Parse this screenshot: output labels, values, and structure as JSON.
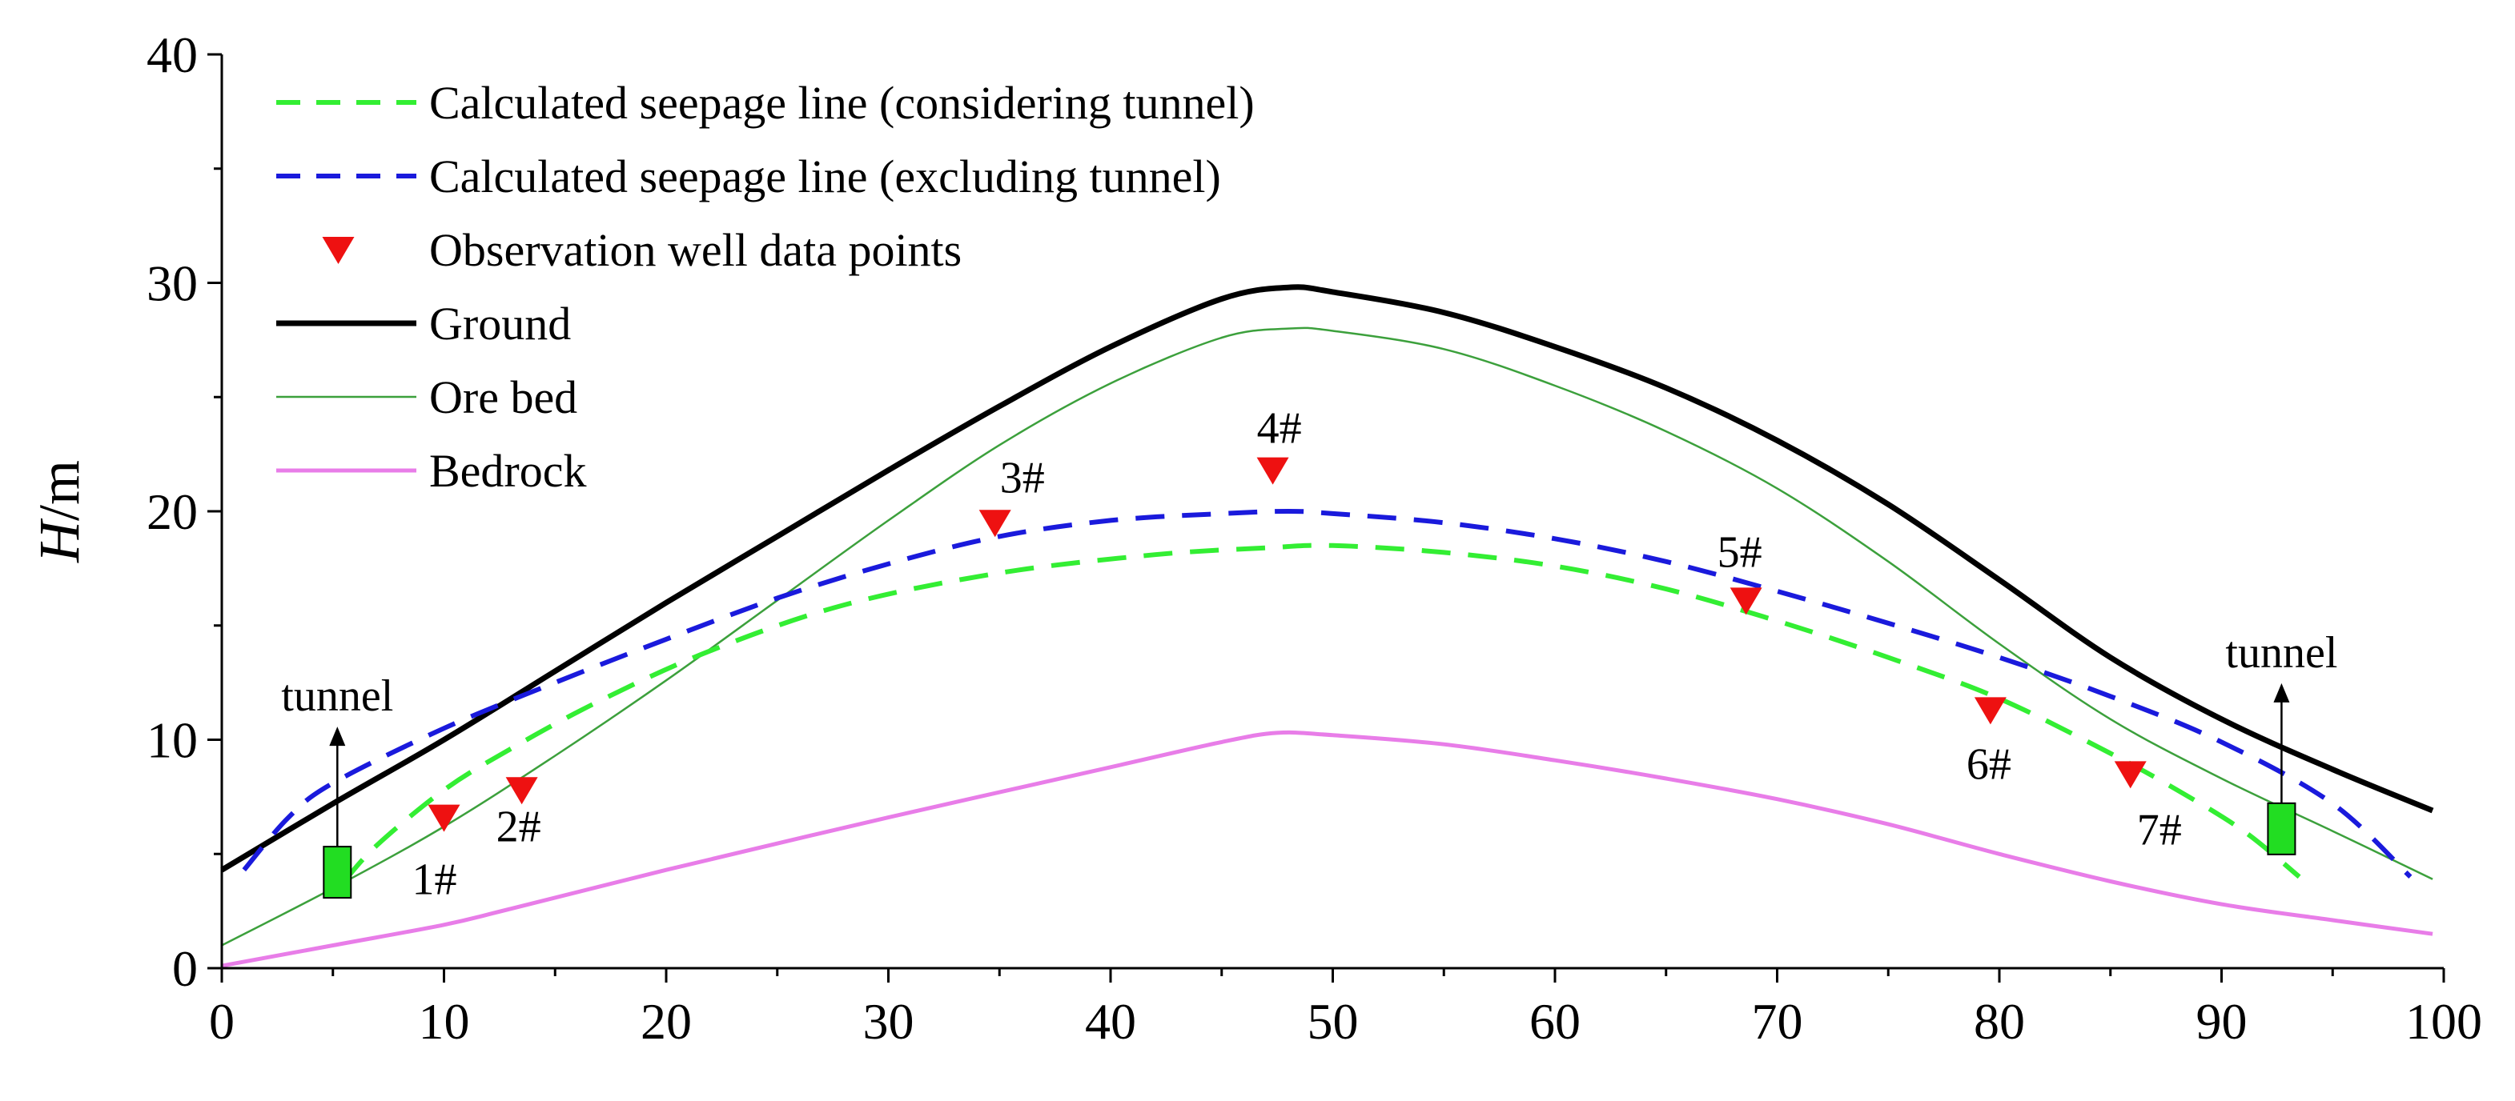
{
  "chart_data": {
    "type": "line",
    "title": "",
    "xlabel": "",
    "ylabel_italic": "H",
    "ylabel_unit": "/m",
    "xlim": [
      0,
      100
    ],
    "ylim": [
      0,
      40
    ],
    "x_ticks": [
      0,
      10,
      20,
      30,
      40,
      50,
      60,
      70,
      80,
      90,
      100
    ],
    "x_tick_labels": [
      "0",
      "10",
      "20",
      "30",
      "40",
      "50",
      "60",
      "70",
      "80",
      "90",
      "100"
    ],
    "y_ticks": [
      0,
      10,
      20,
      30,
      40
    ],
    "y_tick_labels": [
      "0",
      "10",
      "20",
      "30",
      "40"
    ],
    "grid": false,
    "legend_position": "top-left",
    "series": [
      {
        "name": "Calculated seepage line (considering tunnel)",
        "style": "dashed",
        "color": "#33ee33",
        "x": [
          5.5,
          7,
          10,
          13,
          17,
          22,
          28,
          35,
          42,
          47,
          50,
          55,
          60,
          65,
          70,
          75,
          80,
          85,
          88,
          91,
          93.5
        ],
        "y": [
          3.8,
          5.4,
          7.8,
          9.6,
          11.7,
          13.9,
          15.9,
          17.3,
          18.1,
          18.4,
          18.5,
          18.2,
          17.6,
          16.6,
          15.2,
          13.6,
          11.8,
          9.4,
          7.8,
          6.0,
          4.0
        ]
      },
      {
        "name": "Calculated seepage line (excluding tunnel)",
        "style": "dashed",
        "color": "#1a1adc",
        "x": [
          1,
          3,
          5,
          10,
          15,
          20,
          25,
          30,
          35,
          40,
          45,
          48,
          50,
          55,
          60,
          65,
          70,
          75,
          80,
          85,
          90,
          95,
          98.5
        ],
        "y": [
          4.3,
          6.6,
          8.1,
          10.5,
          12.5,
          14.4,
          16.2,
          17.7,
          18.9,
          19.6,
          19.9,
          20.0,
          19.9,
          19.5,
          18.8,
          17.8,
          16.5,
          15.1,
          13.6,
          11.9,
          9.9,
          7.2,
          4.0
        ]
      },
      {
        "name": "Ground",
        "style": "solid-thick",
        "color": "#000000",
        "x": [
          0,
          5,
          10,
          15,
          20,
          25,
          30,
          35,
          40,
          45,
          48,
          50,
          55,
          60,
          65,
          70,
          75,
          80,
          85,
          90,
          95,
          99.5
        ],
        "y": [
          4.3,
          7.2,
          10.0,
          13.0,
          16.0,
          18.9,
          21.8,
          24.6,
          27.2,
          29.3,
          29.8,
          29.6,
          28.7,
          27.2,
          25.4,
          23.1,
          20.3,
          17.0,
          13.6,
          10.9,
          8.7,
          6.9
        ]
      },
      {
        "name": "Ore bed",
        "style": "solid-thin",
        "color": "#3ca03c",
        "x": [
          0,
          5,
          10,
          15,
          20,
          25,
          30,
          35,
          40,
          45,
          48,
          50,
          55,
          60,
          65,
          70,
          75,
          80,
          85,
          90,
          95,
          99.5
        ],
        "y": [
          1.0,
          3.5,
          6.2,
          9.3,
          12.6,
          16.1,
          19.6,
          22.9,
          25.6,
          27.6,
          28.0,
          27.9,
          27.1,
          25.5,
          23.5,
          21.0,
          17.8,
          14.2,
          10.9,
          8.3,
          6.0,
          3.9
        ]
      },
      {
        "name": "Bedrock",
        "style": "solid",
        "color": "#e87de8",
        "x": [
          0,
          5,
          10,
          13,
          20,
          30,
          40,
          45,
          47.5,
          50,
          55,
          60,
          65,
          70,
          75,
          80,
          85,
          90,
          95,
          99.5
        ],
        "y": [
          0.1,
          1.0,
          1.9,
          2.6,
          4.3,
          6.6,
          8.8,
          9.9,
          10.3,
          10.2,
          9.8,
          9.1,
          8.3,
          7.4,
          6.3,
          5.0,
          3.8,
          2.8,
          2.1,
          1.5
        ]
      }
    ],
    "points": {
      "name": "Observation well data points",
      "color": "#ee1111",
      "marker": "triangle-down",
      "data": [
        {
          "label": "1#",
          "x": 10,
          "y": 6.6
        },
        {
          "label": "2#",
          "x": 13.5,
          "y": 7.8
        },
        {
          "label": "3#",
          "x": 34.8,
          "y": 19.5
        },
        {
          "label": "4#",
          "x": 47.3,
          "y": 21.8
        },
        {
          "label": "5#",
          "x": 68.6,
          "y": 16.1
        },
        {
          "label": "6#",
          "x": 79.6,
          "y": 11.3
        },
        {
          "label": "7#",
          "x": 85.9,
          "y": 8.5
        }
      ]
    },
    "annotations": [
      {
        "text": "tunnel",
        "x": 5.2,
        "y": 4.2,
        "color": "#22dd22"
      },
      {
        "text": "tunnel",
        "x": 92.7,
        "y": 6.1,
        "color": "#22dd22"
      }
    ]
  }
}
